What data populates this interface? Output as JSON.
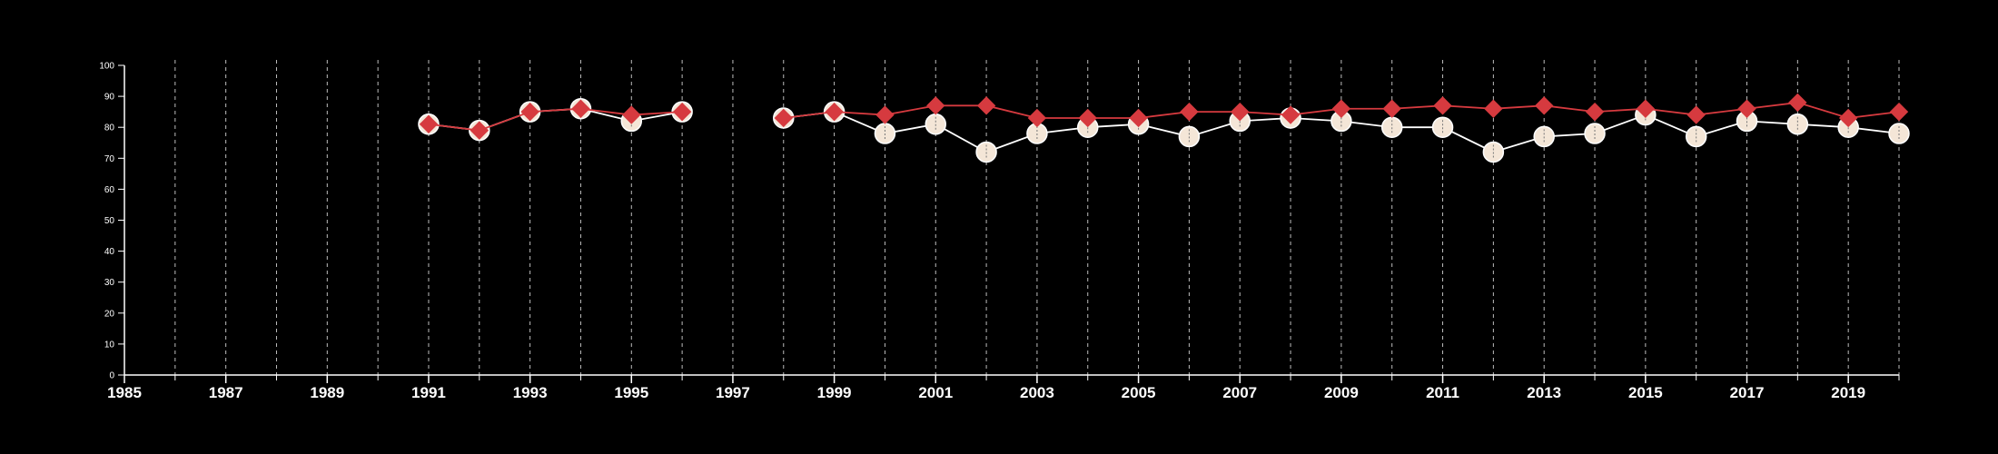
{
  "chart_data": {
    "type": "line",
    "xlim": [
      1985,
      2020
    ],
    "ylim": [
      0,
      100
    ],
    "x_ticks": [
      "1985",
      "1987",
      "1989",
      "1991",
      "1993",
      "1995",
      "1997",
      "1999",
      "2001",
      "2003",
      "2005",
      "2007",
      "2009",
      "2011",
      "2013",
      "2015",
      "2017",
      "2019"
    ],
    "y_ticks": [
      "0",
      "10",
      "20",
      "30",
      "40",
      "50",
      "60",
      "70",
      "80",
      "90",
      "100"
    ],
    "grid": "vertical dashed lines at every year",
    "legend": "none",
    "series": [
      {
        "marker": "circle",
        "color": "#f4e6d7",
        "points": [
          [
            1991,
            81
          ],
          [
            1992,
            79
          ],
          [
            1993,
            85
          ],
          [
            1994,
            86
          ],
          [
            1995,
            82
          ],
          [
            1996,
            85
          ],
          [
            1998,
            83
          ],
          [
            1999,
            85
          ],
          [
            2000,
            78
          ],
          [
            2001,
            81
          ],
          [
            2002,
            72
          ],
          [
            2003,
            78
          ],
          [
            2004,
            80
          ],
          [
            2005,
            81
          ],
          [
            2006,
            77
          ],
          [
            2007,
            82
          ],
          [
            2008,
            83
          ],
          [
            2009,
            82
          ],
          [
            2010,
            80
          ],
          [
            2011,
            80
          ],
          [
            2012,
            72
          ],
          [
            2013,
            77
          ],
          [
            2014,
            78
          ],
          [
            2015,
            84
          ],
          [
            2016,
            77
          ],
          [
            2017,
            82
          ],
          [
            2018,
            81
          ],
          [
            2019,
            80
          ],
          [
            2020,
            78
          ]
        ]
      },
      {
        "marker": "diamond",
        "color": "#d63a3f",
        "points": [
          [
            1991,
            81
          ],
          [
            1992,
            79
          ],
          [
            1993,
            85
          ],
          [
            1994,
            86
          ],
          [
            1995,
            84
          ],
          [
            1996,
            85
          ],
          [
            1998,
            83
          ],
          [
            1999,
            85
          ],
          [
            2000,
            84
          ],
          [
            2001,
            87
          ],
          [
            2002,
            87
          ],
          [
            2003,
            83
          ],
          [
            2004,
            83
          ],
          [
            2005,
            83
          ],
          [
            2006,
            85
          ],
          [
            2007,
            85
          ],
          [
            2008,
            84
          ],
          [
            2009,
            86
          ],
          [
            2010,
            86
          ],
          [
            2011,
            87
          ],
          [
            2012,
            86
          ],
          [
            2013,
            87
          ],
          [
            2014,
            85
          ],
          [
            2015,
            86
          ],
          [
            2016,
            84
          ],
          [
            2017,
            86
          ],
          [
            2018,
            88
          ],
          [
            2019,
            83
          ],
          [
            2020,
            85
          ]
        ]
      }
    ]
  }
}
